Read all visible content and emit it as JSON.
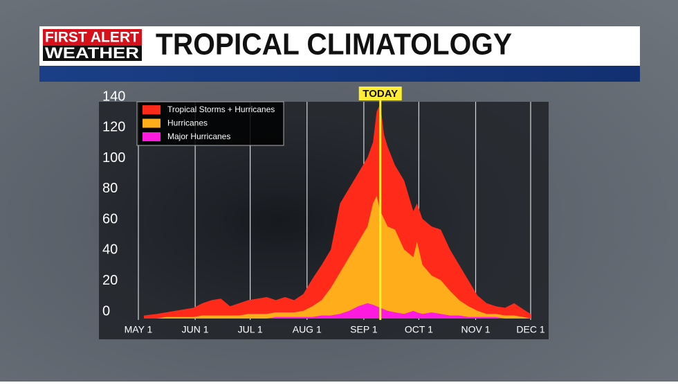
{
  "header": {
    "logo_line1": "FIRST ALERT",
    "logo_line2": "WEATHER",
    "title": "TROPICAL CLIMATOLOGY"
  },
  "chart_data": {
    "type": "area",
    "x": [
      3,
      10,
      15,
      20,
      25,
      30,
      35,
      40,
      45,
      50,
      55,
      60,
      65,
      70,
      75,
      80,
      85,
      90,
      95,
      100,
      105,
      110,
      115,
      120,
      125,
      128,
      130,
      132,
      134,
      136,
      140,
      145,
      150,
      152,
      155,
      160,
      165,
      170,
      175,
      180,
      185,
      190,
      195,
      200,
      205,
      210,
      214
    ],
    "series": [
      {
        "name": "Tropical Storms + Hurricanes",
        "color": "#ff2a1a",
        "values": [
          2,
          3,
          4,
          5,
          6,
          7,
          10,
          12,
          13,
          8,
          10,
          12,
          13,
          14,
          12,
          14,
          12,
          16,
          26,
          35,
          45,
          75,
          85,
          95,
          105,
          115,
          135,
          140,
          120,
          112,
          100,
          90,
          70,
          75,
          65,
          60,
          58,
          45,
          35,
          25,
          15,
          10,
          8,
          7,
          10,
          6,
          3
        ]
      },
      {
        "name": "Hurricanes",
        "color": "#ffad1a",
        "values": [
          0,
          0,
          1,
          1,
          1,
          1,
          2,
          2,
          2,
          2,
          2,
          3,
          3,
          3,
          4,
          4,
          4,
          5,
          8,
          12,
          20,
          30,
          40,
          50,
          60,
          75,
          80,
          70,
          65,
          60,
          58,
          45,
          40,
          50,
          35,
          28,
          25,
          18,
          12,
          8,
          5,
          3,
          3,
          2,
          2,
          1,
          0
        ]
      },
      {
        "name": "Major Hurricanes",
        "color": "#ff1adf",
        "values": [
          0,
          0,
          0,
          0,
          0,
          0,
          0,
          0,
          0,
          0,
          0,
          0,
          0,
          0,
          1,
          1,
          1,
          1,
          1,
          2,
          2,
          3,
          5,
          8,
          10,
          9,
          8,
          7,
          6,
          5,
          4,
          3,
          5,
          4,
          3,
          4,
          3,
          2,
          2,
          1,
          1,
          1,
          1,
          0,
          0,
          0,
          0
        ]
      }
    ],
    "xlim": [
      0,
      214
    ],
    "xticks": [
      {
        "value": 0,
        "label": "MAY 1"
      },
      {
        "value": 31,
        "label": "JUN 1"
      },
      {
        "value": 61,
        "label": "JUL 1"
      },
      {
        "value": 92,
        "label": "AUG 1"
      },
      {
        "value": 123,
        "label": "SEP 1"
      },
      {
        "value": 153,
        "label": "OCT 1"
      },
      {
        "value": 184,
        "label": "NOV 1"
      },
      {
        "value": 214,
        "label": "DEC 1"
      }
    ],
    "ylim": [
      0,
      140
    ],
    "yticks": [
      0,
      20,
      40,
      60,
      80,
      100,
      120,
      140
    ],
    "annotation": {
      "text": "TODAY",
      "x": 132,
      "color": "#ffee33"
    },
    "legend": "upper left",
    "grid": true
  }
}
